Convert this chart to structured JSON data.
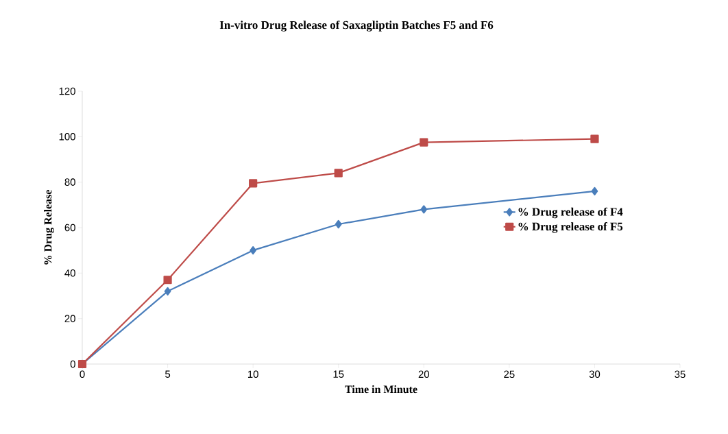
{
  "chart_data": {
    "type": "line",
    "title": "In-vitro Drug Release of Saxagliptin Batches F5 and F6",
    "xlabel": "Time in Minute",
    "ylabel": "% Drug Release",
    "x": [
      0,
      5,
      10,
      15,
      20,
      30
    ],
    "series": [
      {
        "name": "% Drug release of F4",
        "color": "#4a7ebb",
        "marker": "diamond",
        "values": [
          0,
          32,
          50,
          61.5,
          68,
          76
        ]
      },
      {
        "name": "% Drug release of F5",
        "color": "#be4b48",
        "marker": "square",
        "values": [
          0,
          37,
          79.5,
          84,
          97.5,
          99
        ]
      }
    ],
    "xlim": [
      0,
      35
    ],
    "xticks": [
      0,
      5,
      10,
      15,
      20,
      25,
      30,
      35
    ],
    "ylim": [
      0,
      120
    ],
    "yticks": [
      0,
      20,
      40,
      60,
      80,
      100,
      120
    ],
    "grid": false,
    "legend": "right",
    "line_style": "solid"
  }
}
